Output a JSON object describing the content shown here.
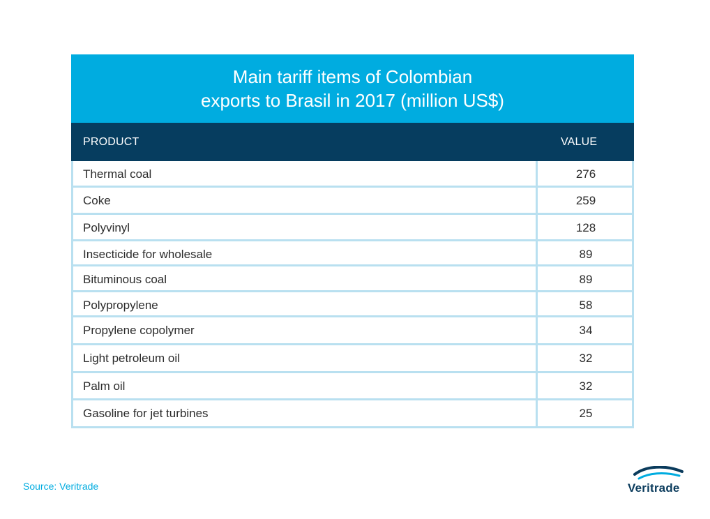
{
  "title_line1": "Main tariff items of Colombian",
  "title_line2": "exports to Brasil in 2017 (million US$)",
  "headers": {
    "product": "PRODUCT",
    "value": "VALUE"
  },
  "source": "Source: Veritrade",
  "logo": {
    "text": "Veritrade"
  },
  "colors": {
    "title_band": "#00ace0",
    "header_band": "#063d5f",
    "grid": "#b9e0f0",
    "source_text": "#00ace0",
    "logo_text": "#0a3b5c"
  },
  "chart_data": {
    "type": "table",
    "title": "Main tariff items of Colombian exports to Brasil in 2017 (million US$)",
    "columns": [
      "PRODUCT",
      "VALUE"
    ],
    "rows": [
      {
        "product": "Thermal coal",
        "value": "276"
      },
      {
        "product": "Coke",
        "value": "259"
      },
      {
        "product": "Polyvinyl",
        "value": "128"
      },
      {
        "product": "Insecticide for wholesale",
        "value": "89"
      },
      {
        "product": "Bituminous coal",
        "value": "89"
      },
      {
        "product": "Polypropylene",
        "value": "58"
      },
      {
        "product": "Propylene copolymer",
        "value": "34"
      },
      {
        "product": "Light petroleum oil",
        "value": "32"
      },
      {
        "product": "Palm oil",
        "value": "32"
      },
      {
        "product": "Gasoline for jet turbines",
        "value": "25"
      }
    ]
  }
}
